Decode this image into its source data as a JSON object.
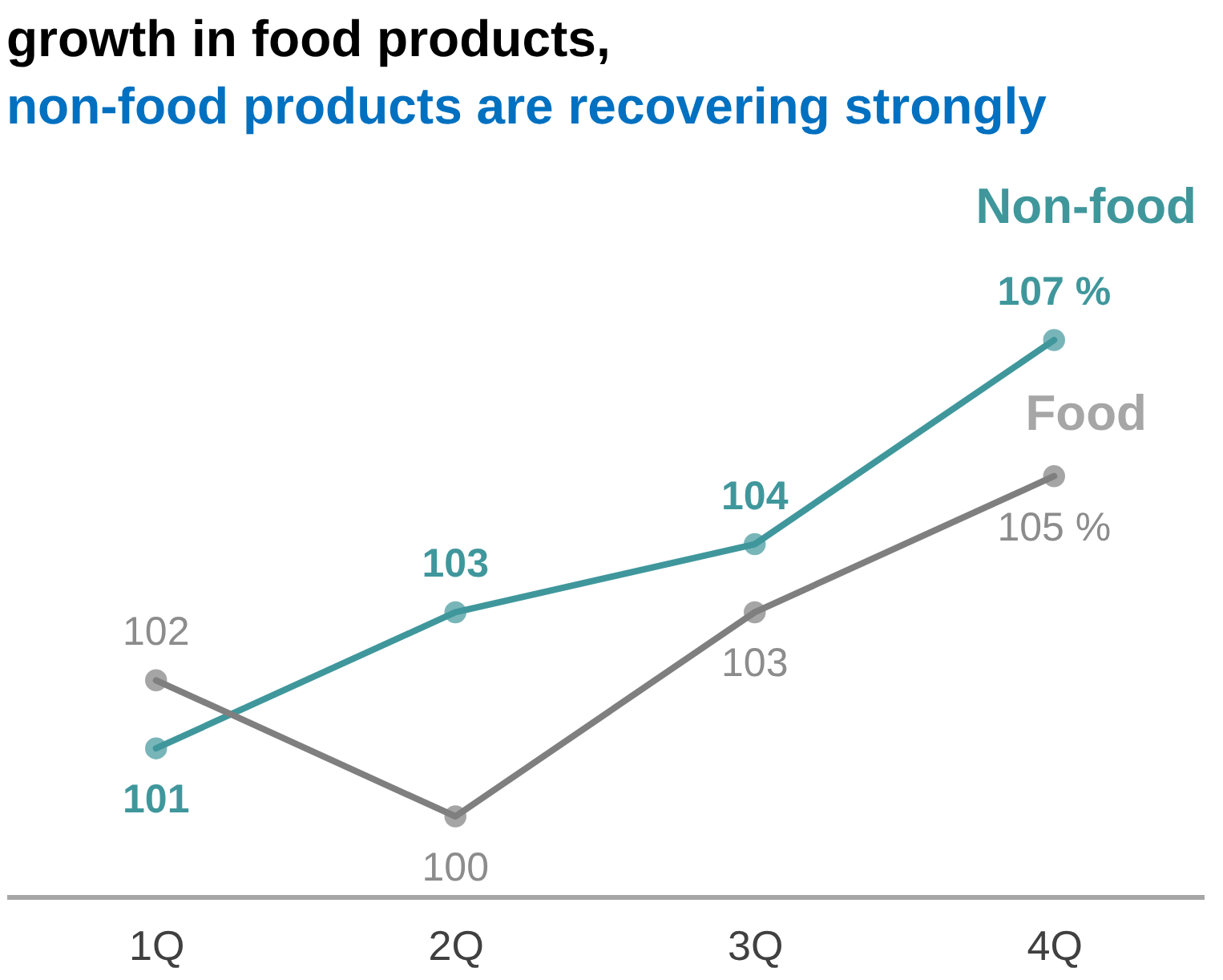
{
  "chart_data": {
    "type": "line",
    "title": "growth in food products,",
    "subtitle": "non-food products are recovering strongly",
    "categories": [
      "1Q",
      "2Q",
      "3Q",
      "4Q"
    ],
    "series": [
      {
        "name": "Non-food",
        "color": "#3f979c",
        "values": [
          101,
          103,
          104,
          107
        ],
        "value_labels": [
          "101",
          "103",
          "104",
          "107 %"
        ]
      },
      {
        "name": "Food",
        "color": "#7f7f7f",
        "values": [
          102,
          100,
          103,
          105
        ],
        "value_labels": [
          "102",
          "100",
          "103",
          "105 %"
        ]
      }
    ],
    "marker": "circle",
    "legend": false,
    "grid": false,
    "tick_labels": "x"
  }
}
